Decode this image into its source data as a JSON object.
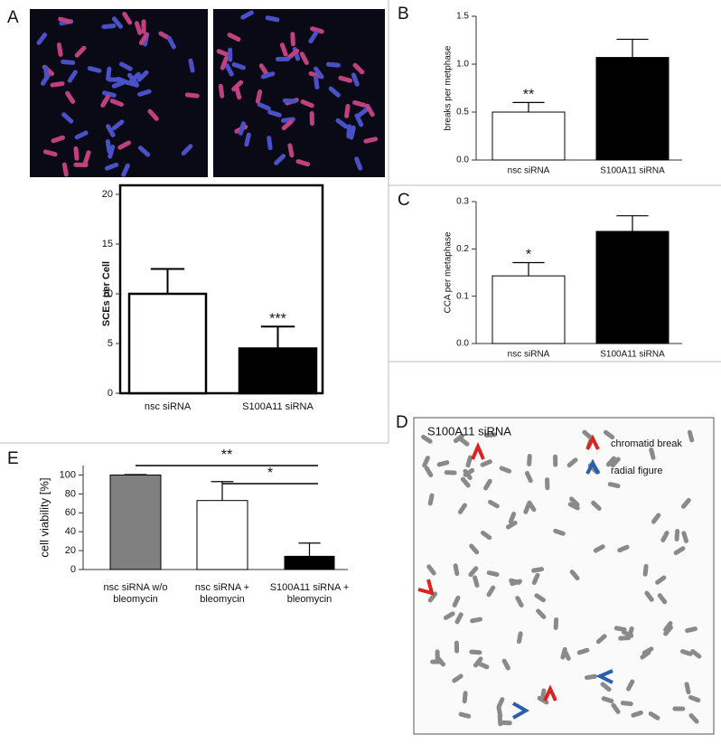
{
  "panel_labels": [
    "A",
    "B",
    "C",
    "D",
    "E"
  ],
  "image_d": {
    "title": "S100A11 siRNA",
    "legend": [
      "chromatid break",
      "radial figure"
    ]
  },
  "chart_data": [
    {
      "type": "bar",
      "ylabel": "SCEs per Cell",
      "categories": [
        "nsc siRNA",
        "S100A11 siRNA"
      ],
      "values": [
        10,
        4.5
      ],
      "errors": [
        2.5,
        2.2
      ],
      "colors": [
        "#ffffff",
        "#000000"
      ],
      "ylim": [
        0,
        20
      ],
      "yticks": [
        0,
        5,
        10,
        15,
        20
      ],
      "annotations": [
        null,
        "***"
      ]
    },
    {
      "type": "bar",
      "ylabel": "breaks per metphase",
      "categories": [
        "nsc siRNA",
        "S100A11 siRNA"
      ],
      "values": [
        0.5,
        1.07
      ],
      "errors": [
        0.1,
        0.19
      ],
      "colors": [
        "#ffffff",
        "#000000"
      ],
      "ylim": [
        0,
        1.5
      ],
      "yticks": [
        {
          "value": 0,
          "label": "0.0"
        },
        0.5,
        {
          "value": 1,
          "label": "1.0"
        },
        1.5
      ],
      "annotations": [
        "**",
        null
      ]
    },
    {
      "type": "bar",
      "ylabel": "CCA per metaphase",
      "categories": [
        "nsc siRNA",
        "S100A11 siRNA"
      ],
      "values": [
        0.143,
        0.237
      ],
      "errors": [
        0.028,
        0.033
      ],
      "colors": [
        "#ffffff",
        "#000000"
      ],
      "ylim": [
        0,
        0.3
      ],
      "yticks": [
        {
          "value": 0,
          "label": "0.0"
        },
        0.1,
        0.2,
        0.3
      ],
      "annotations": [
        "*",
        null
      ]
    },
    {
      "type": "bar",
      "ylabel": "cell viability [%]",
      "categories": [
        [
          "nsc siRNA w/o",
          "bleomycin"
        ],
        [
          "nsc siRNA +",
          "bleomycin"
        ],
        [
          "S100A11 siRNA +",
          "bleomycin"
        ]
      ],
      "values": [
        100,
        73,
        14
      ],
      "errors": [
        0.5,
        20,
        14
      ],
      "colors": [
        "#808080",
        "#ffffff",
        "#000000"
      ],
      "ylim": [
        0,
        110
      ],
      "yticks": [
        0,
        20,
        40,
        60,
        80,
        100
      ],
      "brackets": [
        "**",
        "*"
      ]
    }
  ]
}
